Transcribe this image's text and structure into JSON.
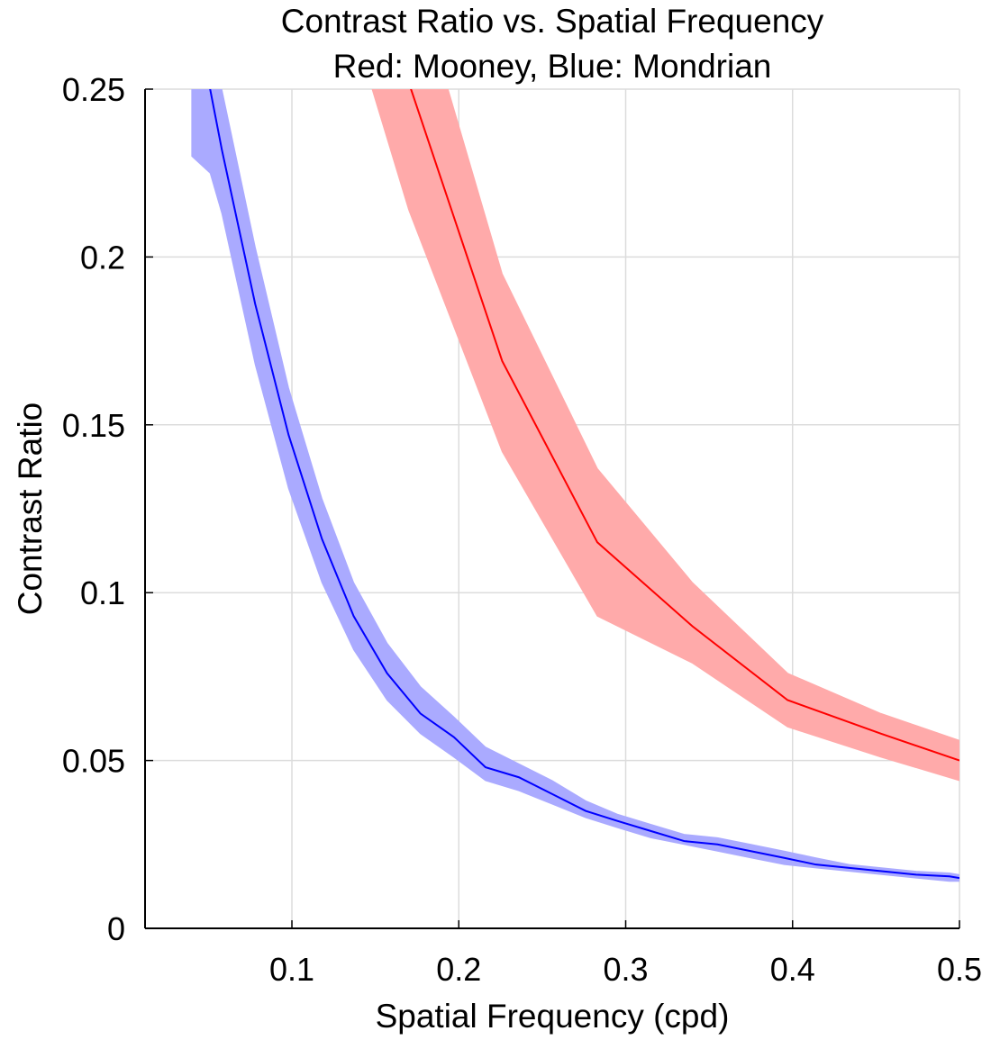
{
  "chart_data": {
    "type": "line",
    "title": "Contrast Ratio vs. Spatial Frequency",
    "subtitle": "Red: Mooney, Blue: Mondrian",
    "xlabel": "Spatial Frequency (cpd)",
    "ylabel": "Contrast Ratio",
    "xlim": [
      0.012,
      0.5
    ],
    "ylim": [
      0,
      0.25
    ],
    "grid": true,
    "x_ticks": [
      "0.1",
      "0.2",
      "0.3",
      "0.4",
      "0.5"
    ],
    "y_ticks": [
      "0",
      "0.05",
      "0.1",
      "0.15",
      "0.2",
      "0.25"
    ],
    "series": [
      {
        "color": "#0000ff",
        "band_color": "#aaaaff",
        "x": [
          0.04,
          0.051,
          0.058,
          0.078,
          0.098,
          0.118,
          0.137,
          0.157,
          0.177,
          0.197,
          0.216,
          0.236,
          0.256,
          0.276,
          0.295,
          0.315,
          0.335,
          0.355,
          0.375,
          0.395,
          0.414,
          0.434,
          0.454,
          0.474,
          0.494,
          0.5
        ],
        "y": [
          0.262,
          0.25,
          0.232,
          0.186,
          0.147,
          0.116,
          0.093,
          0.076,
          0.064,
          0.057,
          0.048,
          0.045,
          0.04,
          0.035,
          0.032,
          0.029,
          0.026,
          0.025,
          0.023,
          0.021,
          0.019,
          0.018,
          0.017,
          0.016,
          0.0155,
          0.015
        ],
        "lower": [
          0.23,
          0.225,
          0.213,
          0.168,
          0.131,
          0.103,
          0.083,
          0.068,
          0.058,
          0.051,
          0.044,
          0.041,
          0.037,
          0.033,
          0.03,
          0.027,
          0.025,
          0.023,
          0.021,
          0.019,
          0.018,
          0.017,
          0.016,
          0.015,
          0.014,
          0.014
        ],
        "upper": [
          0.28,
          0.27,
          0.25,
          0.203,
          0.161,
          0.128,
          0.103,
          0.085,
          0.072,
          0.063,
          0.054,
          0.049,
          0.044,
          0.038,
          0.034,
          0.031,
          0.028,
          0.027,
          0.025,
          0.023,
          0.021,
          0.019,
          0.018,
          0.017,
          0.0165,
          0.016
        ]
      },
      {
        "color": "#ff0000",
        "band_color": "#ffaaaa",
        "x": [
          0.145,
          0.17,
          0.226,
          0.283,
          0.34,
          0.397,
          0.453,
          0.5
        ],
        "y": [
          0.29,
          0.252,
          0.169,
          0.115,
          0.09,
          0.068,
          0.058,
          0.05
        ],
        "lower": [
          0.255,
          0.214,
          0.142,
          0.093,
          0.079,
          0.06,
          0.051,
          0.044
        ],
        "upper": [
          0.33,
          0.29,
          0.195,
          0.137,
          0.103,
          0.076,
          0.064,
          0.056
        ]
      }
    ]
  }
}
